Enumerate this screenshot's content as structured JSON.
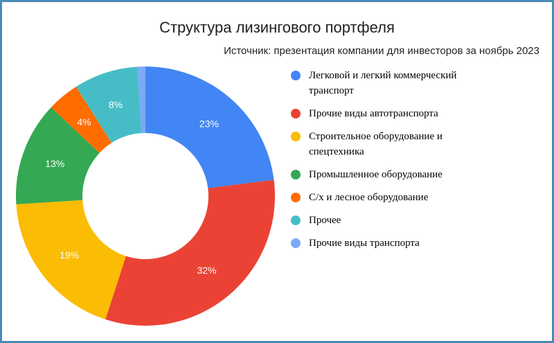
{
  "header": {
    "title": "Структура лизингового портфеля",
    "subtitle": "Источник: презентация компании для инвесторов за ноябрь 2023"
  },
  "chart_data": {
    "type": "pie",
    "donut": true,
    "title": "Структура лизингового портфеля",
    "subtitle": "Источник: презентация компании для инвесторов за ноябрь 2023",
    "legend_position": "right",
    "categories": [
      "Легковой и легкий коммерческий транспорт",
      "Прочие виды автотранспорта",
      "Строительное оборудование и спецтехника",
      "Промышленное оборудование",
      "С/х и лесное оборудование",
      "Прочее",
      "Прочие виды транспорта"
    ],
    "values": [
      23,
      32,
      19,
      13,
      4,
      8,
      1
    ],
    "labels": [
      "23%",
      "32%",
      "19%",
      "13%",
      "4%",
      "8%",
      ""
    ],
    "colors": [
      "#4285f4",
      "#ea4335",
      "#fbbc04",
      "#34a853",
      "#ff6d01",
      "#46bdc6",
      "#7baaf7"
    ]
  },
  "legend": {
    "items": [
      {
        "label": "Легковой и легкий коммерческий транспорт",
        "color": "#4285f4"
      },
      {
        "label": "Прочие виды автотранспорта",
        "color": "#ea4335"
      },
      {
        "label": "Строительное оборудование и спецтехника",
        "color": "#fbbc04"
      },
      {
        "label": "Промышленное оборудование",
        "color": "#34a853"
      },
      {
        "label": "С/х и лесное оборудование",
        "color": "#ff6d01"
      },
      {
        "label": "Прочее",
        "color": "#46bdc6"
      },
      {
        "label": "Прочие виды транспорта",
        "color": "#7baaf7"
      }
    ]
  }
}
